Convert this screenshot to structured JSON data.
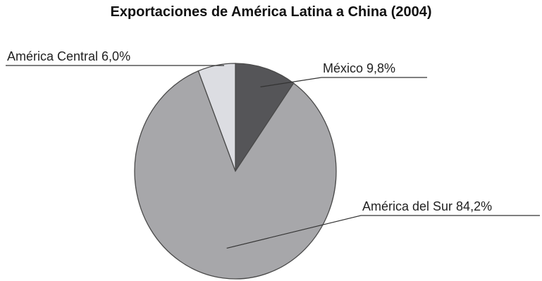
{
  "chart_data": {
    "type": "pie",
    "title": "Exportaciones de América Latina a China (2004)",
    "start_angle_deg": 0,
    "direction": "clockwise",
    "slices": [
      {
        "label": "México 9,8%",
        "value": 9.8,
        "color": "#555558"
      },
      {
        "label": "América del Sur 84,2%",
        "value": 84.2,
        "color": "#a7a7aa"
      },
      {
        "label": "América Central 6,0%",
        "value": 6.0,
        "color": "#dcdde2"
      }
    ],
    "legend": "none"
  }
}
